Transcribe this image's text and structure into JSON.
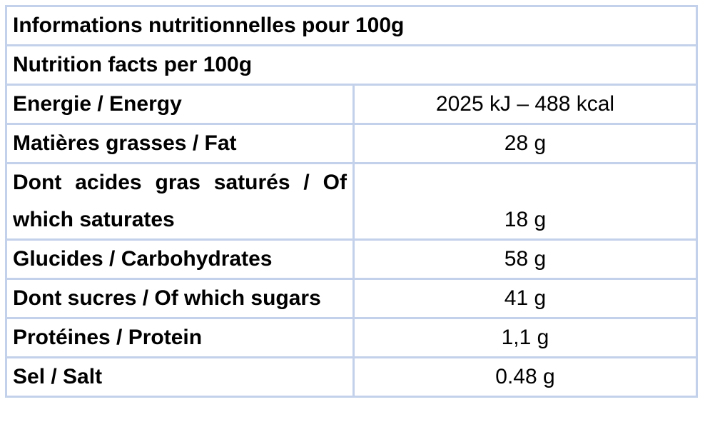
{
  "table": {
    "headers": [
      "Informations nutritionnelles pour 100g",
      "Nutrition facts per 100g"
    ],
    "rows": [
      [
        "Energie / Energy",
        "2025 kJ – 488 kcal"
      ],
      [
        "Matières grasses / Fat",
        "28 g"
      ],
      [
        "Dont acides gras saturés / Of which saturates",
        "18 g"
      ],
      [
        "Glucides / Carbohydrates",
        "58 g"
      ],
      [
        "Dont sucres / Of which sugars",
        "41 g"
      ],
      [
        "Protéines / Protein",
        "1,1 g"
      ],
      [
        "Sel / Salt",
        "0.48 g"
      ]
    ]
  }
}
